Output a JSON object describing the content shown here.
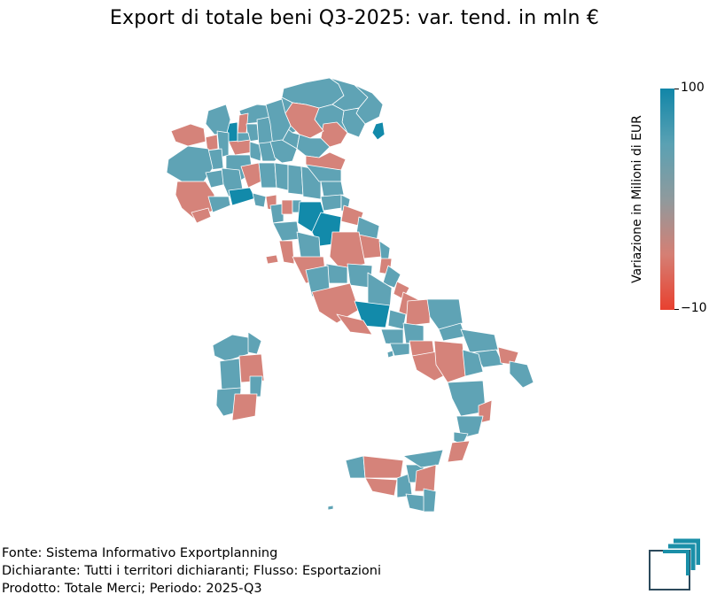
{
  "title": "Export di totale beni Q3-2025: var. tend. in mln €",
  "legend": {
    "title": "Variazione in Milioni di EUR",
    "max_label": "100",
    "min_label": "−10",
    "colors": {
      "top": "#1186a8",
      "mid_upper": "#5aa1b3",
      "middle": "#8f9a9d",
      "mid_lower": "#d57f74",
      "bottom": "#e8412f"
    }
  },
  "map_colors": {
    "positive": "#5fa3b5",
    "strong_positive": "#128aaa",
    "negative": "#d5837a",
    "border": "#ffffff"
  },
  "footer": {
    "line1": "Fonte: Sistema Informativo Exportplanning",
    "line2": "Dichiarante: Tutti i territori dichiaranti; Flusso: Esportazioni",
    "line3": "Prodotto: Totale Merci; Periodo: 2025-Q3"
  },
  "logo": {
    "icon": "exportplanning-logo-icon",
    "color": "#1a8fa8",
    "frame_color": "#2c4a5c"
  }
}
